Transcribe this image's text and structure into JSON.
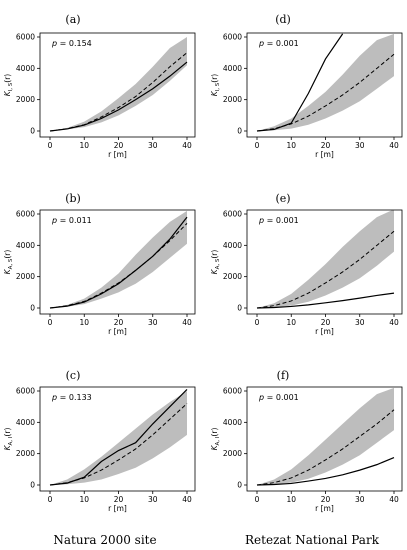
{
  "captions": {
    "left": "Natura 2000 site",
    "right": "Retezat National Park"
  },
  "chart_data": [
    {
      "panel": "(a)",
      "type": "line",
      "p_label": "p",
      "p_value": "= 0.154",
      "ylabel_main": "K",
      "ylabel_sub": "I, S",
      "ylabel_arg": "(r)",
      "xlabel": "r [m]",
      "xlim": [
        0,
        40
      ],
      "ylim": [
        0,
        6000
      ],
      "xticks": [
        "0",
        "10",
        "20",
        "30",
        "40"
      ],
      "yticks": [
        "0",
        "2000",
        "4000",
        "6000"
      ],
      "x": [
        0,
        5,
        10,
        15,
        20,
        25,
        30,
        35,
        40
      ],
      "band_low": [
        0,
        100,
        250,
        550,
        1000,
        1600,
        2300,
        3200,
        4200
      ],
      "band_high": [
        0,
        200,
        600,
        1250,
        2100,
        3000,
        4100,
        5300,
        6000
      ],
      "expected": [
        0,
        150,
        400,
        900,
        1500,
        2200,
        3100,
        4100,
        5000
      ],
      "observed": [
        0,
        130,
        380,
        800,
        1350,
        2000,
        2700,
        3500,
        4400
      ]
    },
    {
      "panel": "(b)",
      "type": "line",
      "p_label": "p",
      "p_value": "= 0.011",
      "ylabel_main": "K",
      "ylabel_sub": "A, S",
      "ylabel_arg": "(r)",
      "xlabel": "r [m]",
      "xlim": [
        0,
        40
      ],
      "ylim": [
        0,
        6000
      ],
      "xticks": [
        "0",
        "10",
        "20",
        "30",
        "40"
      ],
      "yticks": [
        "0",
        "2000",
        "4000",
        "6000"
      ],
      "x": [
        0,
        5,
        10,
        15,
        20,
        25,
        30,
        35,
        40
      ],
      "band_low": [
        0,
        80,
        250,
        600,
        1000,
        1550,
        2300,
        3200,
        4100
      ],
      "band_high": [
        0,
        200,
        600,
        1300,
        2200,
        3400,
        4500,
        5500,
        6200
      ],
      "expected": [
        0,
        150,
        420,
        950,
        1600,
        2400,
        3300,
        4300,
        5400
      ],
      "observed": [
        0,
        120,
        380,
        900,
        1550,
        2400,
        3300,
        4400,
        5800
      ]
    },
    {
      "panel": "(c)",
      "type": "line",
      "p_label": "p",
      "p_value": "= 0.133",
      "ylabel_main": "K",
      "ylabel_sub": "A, I",
      "ylabel_arg": "(r)",
      "xlabel": "r [m]",
      "xlim": [
        0,
        40
      ],
      "ylim": [
        0,
        6000
      ],
      "xticks": [
        "0",
        "10",
        "20",
        "30",
        "40"
      ],
      "yticks": [
        "0",
        "2000",
        "4000",
        "6000"
      ],
      "x": [
        0,
        5,
        10,
        15,
        20,
        25,
        30,
        35,
        40
      ],
      "band_low": [
        0,
        50,
        150,
        350,
        700,
        1100,
        1700,
        2400,
        3200
      ],
      "band_high": [
        0,
        350,
        1000,
        1800,
        2700,
        3600,
        4500,
        5300,
        6000
      ],
      "expected": [
        0,
        150,
        450,
        950,
        1600,
        2300,
        3200,
        4200,
        5200
      ],
      "observed": [
        0,
        120,
        500,
        1500,
        2200,
        2700,
        3900,
        5000,
        6100
      ]
    },
    {
      "panel": "(d)",
      "type": "line",
      "p_label": "p",
      "p_value": "= 0.001",
      "ylabel_main": "K",
      "ylabel_sub": "I, S",
      "ylabel_arg": "(r)",
      "xlabel": "r [m]",
      "xlim": [
        0,
        40
      ],
      "ylim": [
        0,
        6000
      ],
      "xticks": [
        "0",
        "10",
        "20",
        "30",
        "40"
      ],
      "yticks": [
        "0",
        "2000",
        "4000",
        "6000"
      ],
      "x": [
        0,
        5,
        10,
        15,
        20,
        25,
        30,
        35,
        40
      ],
      "band_low": [
        0,
        50,
        150,
        400,
        800,
        1300,
        1900,
        2700,
        3500
      ],
      "band_high": [
        0,
        300,
        800,
        1600,
        2500,
        3600,
        4800,
        5800,
        6200
      ],
      "expected": [
        0,
        150,
        450,
        950,
        1600,
        2300,
        3100,
        4000,
        4900
      ],
      "observed": [
        0,
        100,
        500,
        2400,
        4600,
        6200,
        null,
        null,
        null
      ]
    },
    {
      "panel": "(e)",
      "type": "line",
      "p_label": "p",
      "p_value": "= 0.001",
      "ylabel_main": "K",
      "ylabel_sub": "A, S",
      "ylabel_arg": "(r)",
      "xlabel": "r [m]",
      "xlim": [
        0,
        40
      ],
      "ylim": [
        0,
        6000
      ],
      "xticks": [
        "0",
        "10",
        "20",
        "30",
        "40"
      ],
      "yticks": [
        "0",
        "2000",
        "4000",
        "6000"
      ],
      "x": [
        0,
        5,
        10,
        15,
        20,
        25,
        30,
        35,
        40
      ],
      "band_low": [
        0,
        50,
        150,
        400,
        800,
        1300,
        1900,
        2700,
        3600
      ],
      "band_high": [
        0,
        300,
        900,
        1800,
        2800,
        3900,
        4900,
        5800,
        6300
      ],
      "expected": [
        0,
        150,
        450,
        950,
        1600,
        2300,
        3100,
        4000,
        4900
      ],
      "observed": [
        0,
        30,
        100,
        200,
        330,
        470,
        630,
        800,
        950
      ]
    },
    {
      "panel": "(f)",
      "type": "line",
      "p_label": "p",
      "p_value": "= 0.001",
      "ylabel_main": "K",
      "ylabel_sub": "A, I",
      "ylabel_arg": "(r)",
      "xlabel": "r [m]",
      "xlim": [
        0,
        40
      ],
      "ylim": [
        0,
        6000
      ],
      "xticks": [
        "0",
        "10",
        "20",
        "30",
        "40"
      ],
      "yticks": [
        "0",
        "2000",
        "4000",
        "6000"
      ],
      "x": [
        0,
        5,
        10,
        15,
        20,
        25,
        30,
        35,
        40
      ],
      "band_low": [
        0,
        50,
        150,
        400,
        800,
        1300,
        1900,
        2700,
        3500
      ],
      "band_high": [
        0,
        350,
        1000,
        1900,
        2900,
        3900,
        4900,
        5800,
        6200
      ],
      "expected": [
        0,
        150,
        450,
        950,
        1600,
        2300,
        3100,
        3900,
        4800
      ],
      "observed": [
        0,
        30,
        100,
        250,
        420,
        650,
        950,
        1300,
        1750
      ]
    }
  ]
}
